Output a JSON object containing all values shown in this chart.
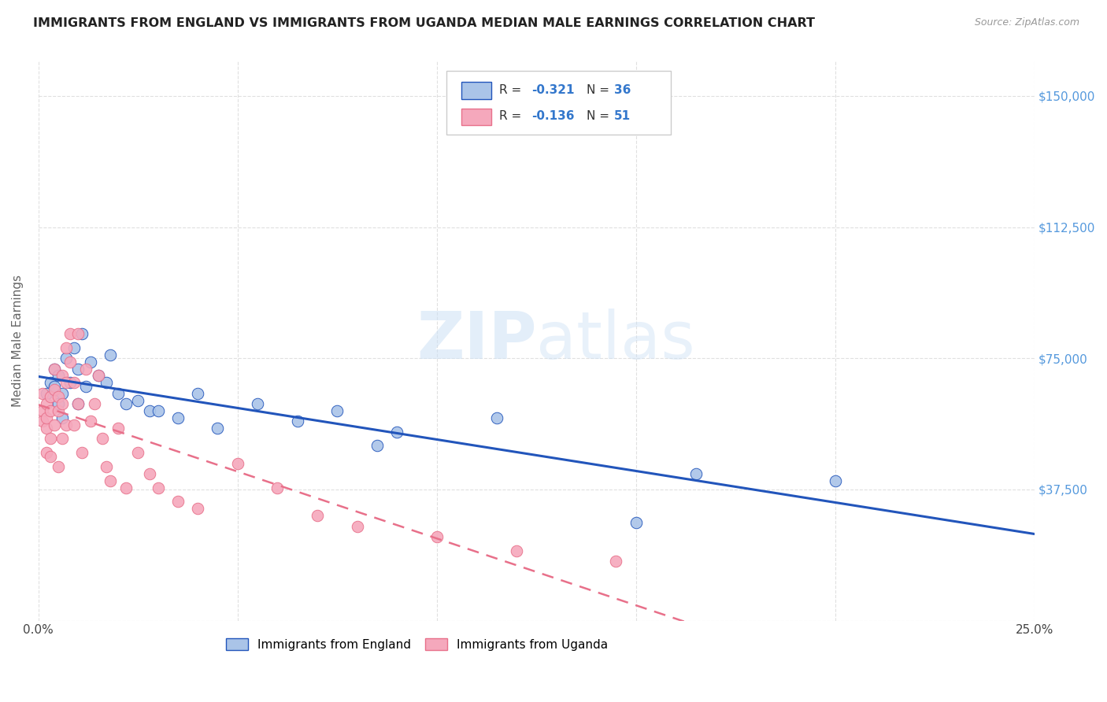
{
  "title": "IMMIGRANTS FROM ENGLAND VS IMMIGRANTS FROM UGANDA MEDIAN MALE EARNINGS CORRELATION CHART",
  "source": "Source: ZipAtlas.com",
  "ylabel": "Median Male Earnings",
  "x_min": 0.0,
  "x_max": 0.25,
  "y_min": 0,
  "y_max": 160000,
  "yticks": [
    0,
    37500,
    75000,
    112500,
    150000
  ],
  "ytick_labels": [
    "",
    "$37,500",
    "$75,000",
    "$112,500",
    "$150,000"
  ],
  "xticks": [
    0.0,
    0.05,
    0.1,
    0.15,
    0.2,
    0.25
  ],
  "xtick_labels": [
    "0.0%",
    "",
    "",
    "",
    "",
    "25.0%"
  ],
  "england_color": "#aac4e8",
  "uganda_color": "#f5a8bc",
  "england_line_color": "#2255bb",
  "uganda_line_color": "#e8708a",
  "england_R": -0.321,
  "england_N": 36,
  "uganda_R": -0.136,
  "uganda_N": 51,
  "england_x": [
    0.002,
    0.003,
    0.004,
    0.004,
    0.005,
    0.005,
    0.006,
    0.006,
    0.007,
    0.008,
    0.009,
    0.01,
    0.01,
    0.011,
    0.012,
    0.013,
    0.015,
    0.017,
    0.018,
    0.02,
    0.022,
    0.025,
    0.028,
    0.03,
    0.035,
    0.04,
    0.045,
    0.055,
    0.065,
    0.075,
    0.085,
    0.09,
    0.115,
    0.15,
    0.165,
    0.2
  ],
  "england_y": [
    65000,
    68000,
    72000,
    67000,
    62000,
    70000,
    58000,
    65000,
    75000,
    68000,
    78000,
    72000,
    62000,
    82000,
    67000,
    74000,
    70000,
    68000,
    76000,
    65000,
    62000,
    63000,
    60000,
    60000,
    58000,
    65000,
    55000,
    62000,
    57000,
    60000,
    50000,
    54000,
    58000,
    28000,
    42000,
    40000
  ],
  "uganda_x": [
    0.001,
    0.001,
    0.001,
    0.002,
    0.002,
    0.002,
    0.002,
    0.003,
    0.003,
    0.003,
    0.003,
    0.004,
    0.004,
    0.004,
    0.005,
    0.005,
    0.005,
    0.006,
    0.006,
    0.006,
    0.007,
    0.007,
    0.007,
    0.008,
    0.008,
    0.009,
    0.009,
    0.01,
    0.01,
    0.011,
    0.012,
    0.013,
    0.014,
    0.015,
    0.016,
    0.017,
    0.018,
    0.02,
    0.022,
    0.025,
    0.028,
    0.03,
    0.035,
    0.04,
    0.05,
    0.06,
    0.07,
    0.08,
    0.1,
    0.12,
    0.145
  ],
  "uganda_y": [
    60000,
    57000,
    65000,
    62000,
    55000,
    58000,
    48000,
    64000,
    60000,
    52000,
    47000,
    72000,
    66000,
    56000,
    64000,
    60000,
    44000,
    70000,
    62000,
    52000,
    78000,
    68000,
    56000,
    82000,
    74000,
    68000,
    56000,
    82000,
    62000,
    48000,
    72000,
    57000,
    62000,
    70000,
    52000,
    44000,
    40000,
    55000,
    38000,
    48000,
    42000,
    38000,
    34000,
    32000,
    45000,
    38000,
    30000,
    27000,
    24000,
    20000,
    17000
  ],
  "watermark_zip": "ZIP",
  "watermark_atlas": "atlas",
  "background_color": "#ffffff",
  "grid_color": "#dddddd"
}
